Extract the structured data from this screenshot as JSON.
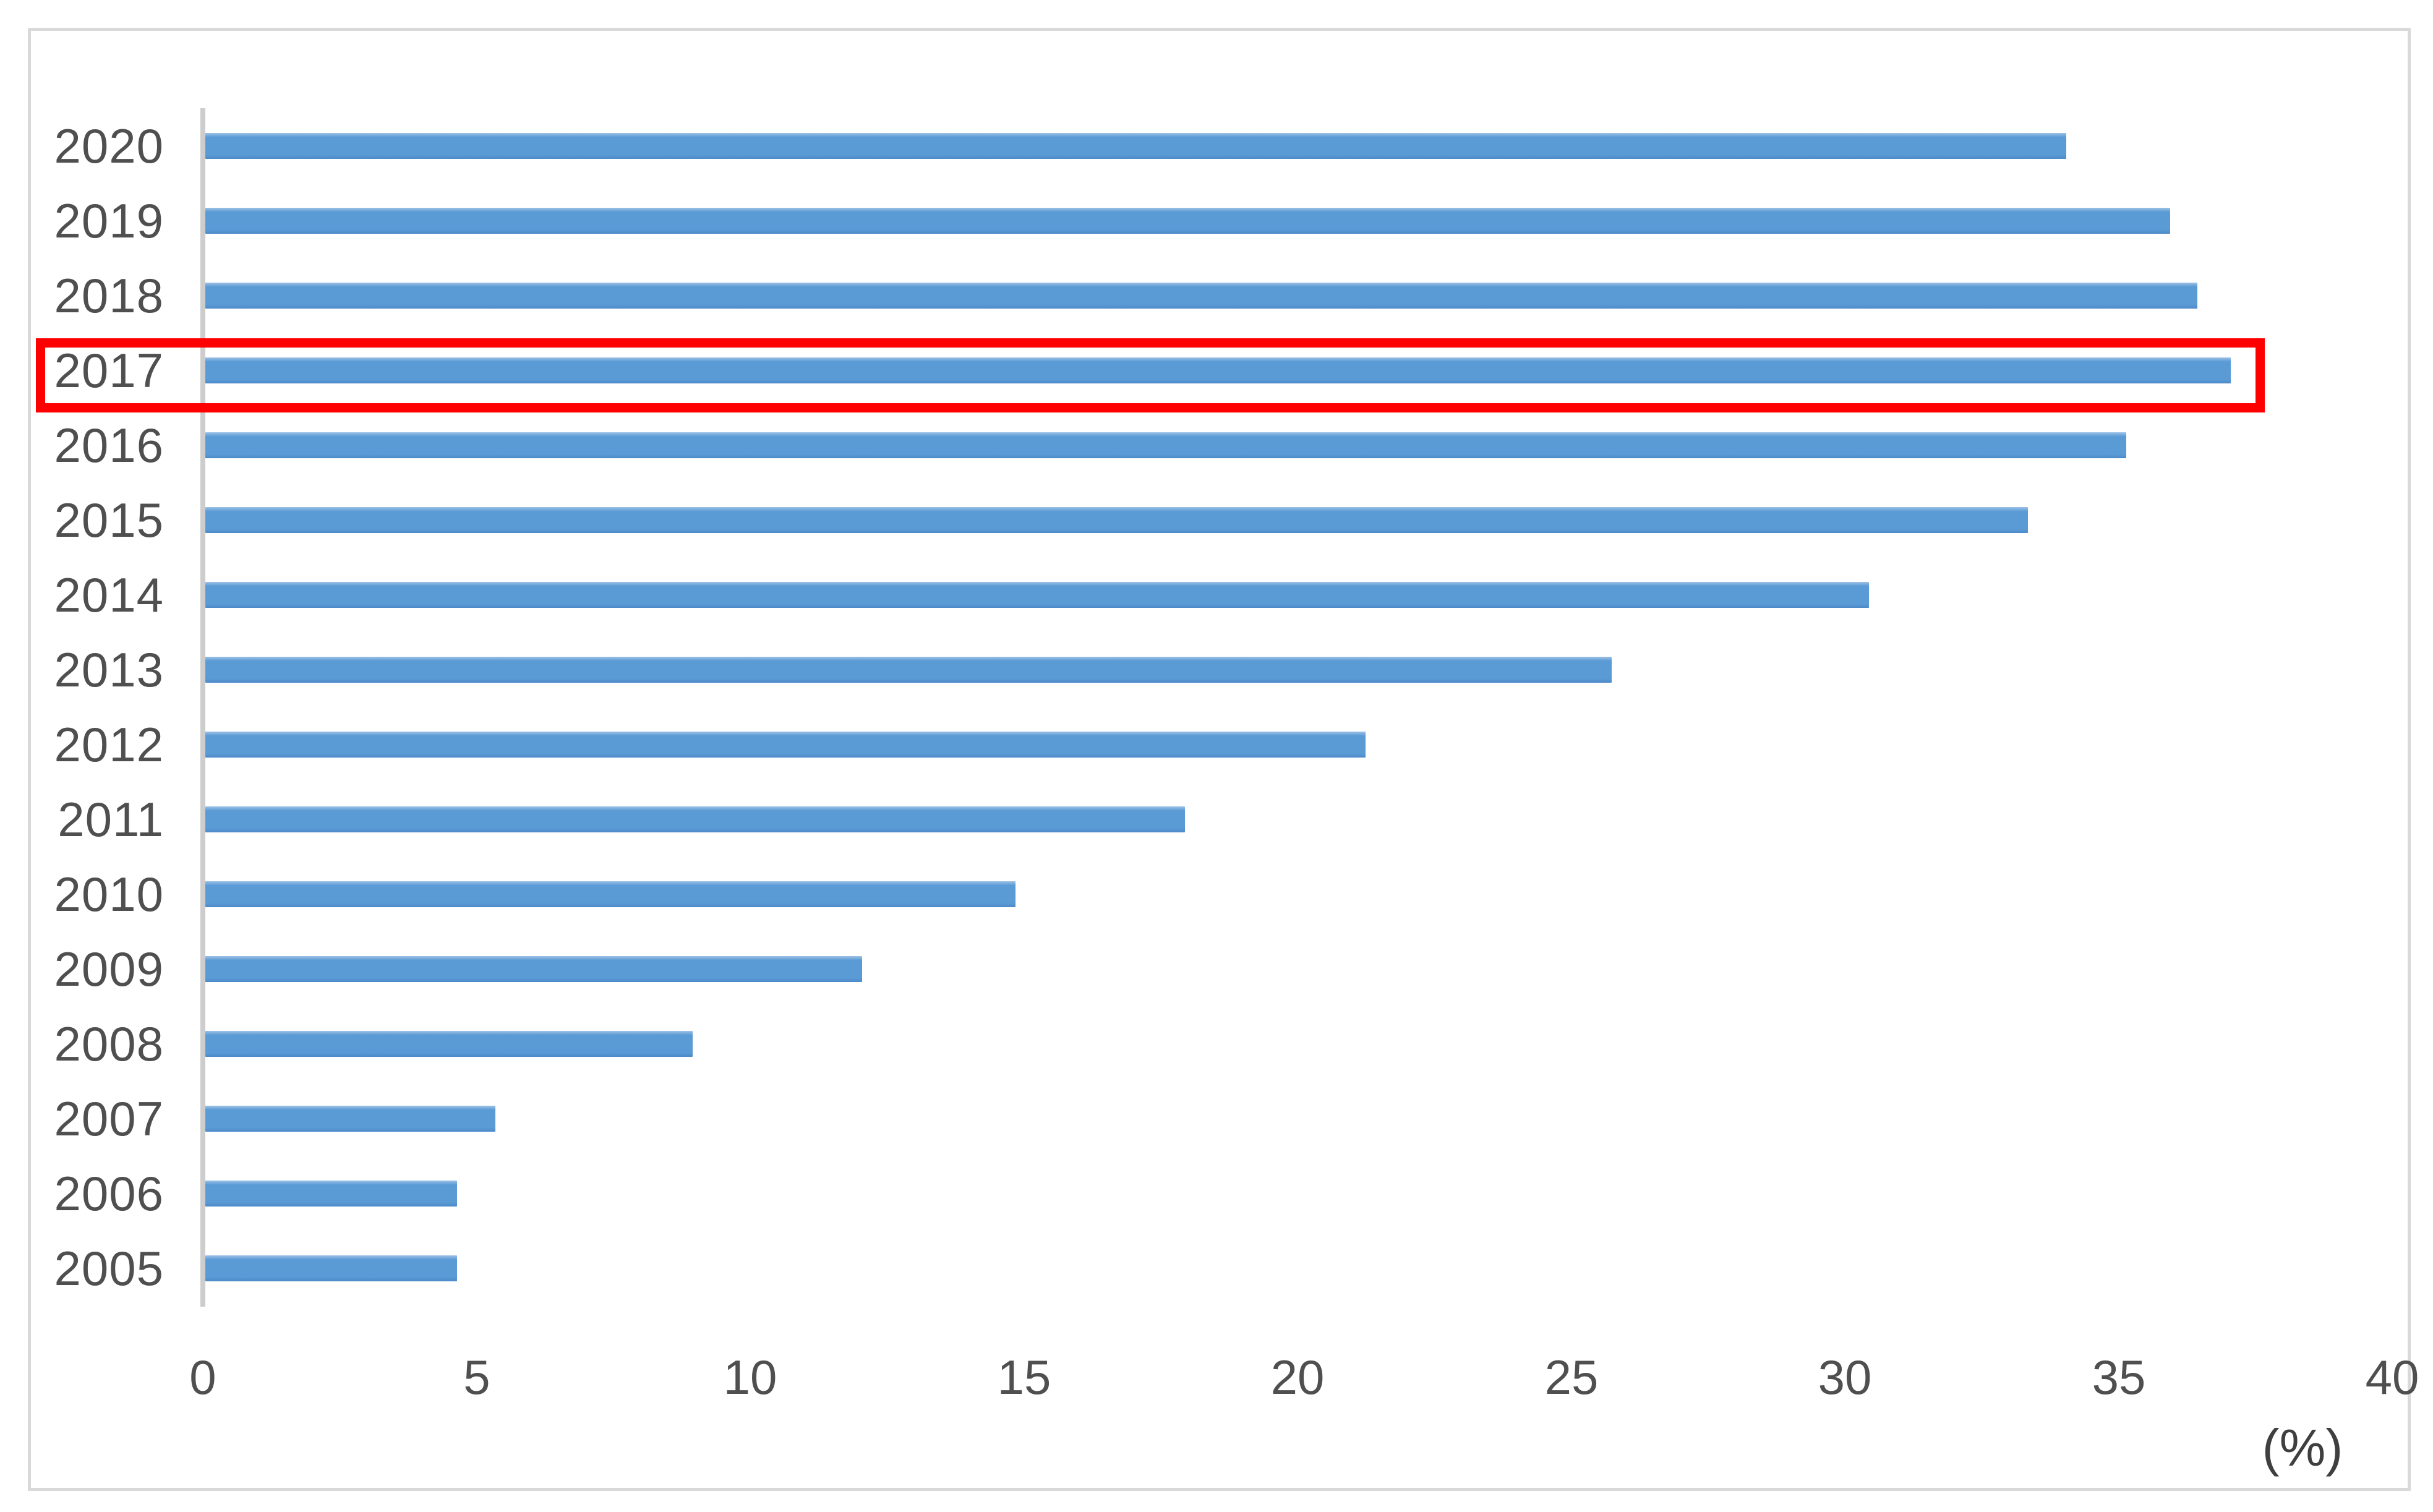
{
  "chart_data": {
    "type": "bar",
    "orientation": "horizontal",
    "title": "",
    "categories": [
      "2020",
      "2019",
      "2018",
      "2017",
      "2016",
      "2015",
      "2014",
      "2013",
      "2012",
      "2011",
      "2010",
      "2009",
      "2008",
      "2007",
      "2006",
      "2005"
    ],
    "values": [
      34.0,
      35.9,
      36.4,
      37.0,
      35.1,
      33.3,
      30.4,
      25.7,
      21.2,
      17.9,
      14.8,
      12.0,
      8.9,
      5.3,
      4.6,
      4.6
    ],
    "xlabel": "(%)",
    "x_ticks": [
      "0",
      "5",
      "10",
      "15",
      "20",
      "25",
      "30",
      "35",
      "40"
    ],
    "xlim": [
      0,
      40
    ],
    "grid": false,
    "legend_position": "none",
    "highlighted_category": "2017",
    "colors": {
      "bar": "#5B9BD5",
      "highlight_box": "#FF0000",
      "axis_line": "#CDCDCD",
      "frame_border": "#D9D9D9",
      "label_text": "#4F4F4F"
    }
  }
}
